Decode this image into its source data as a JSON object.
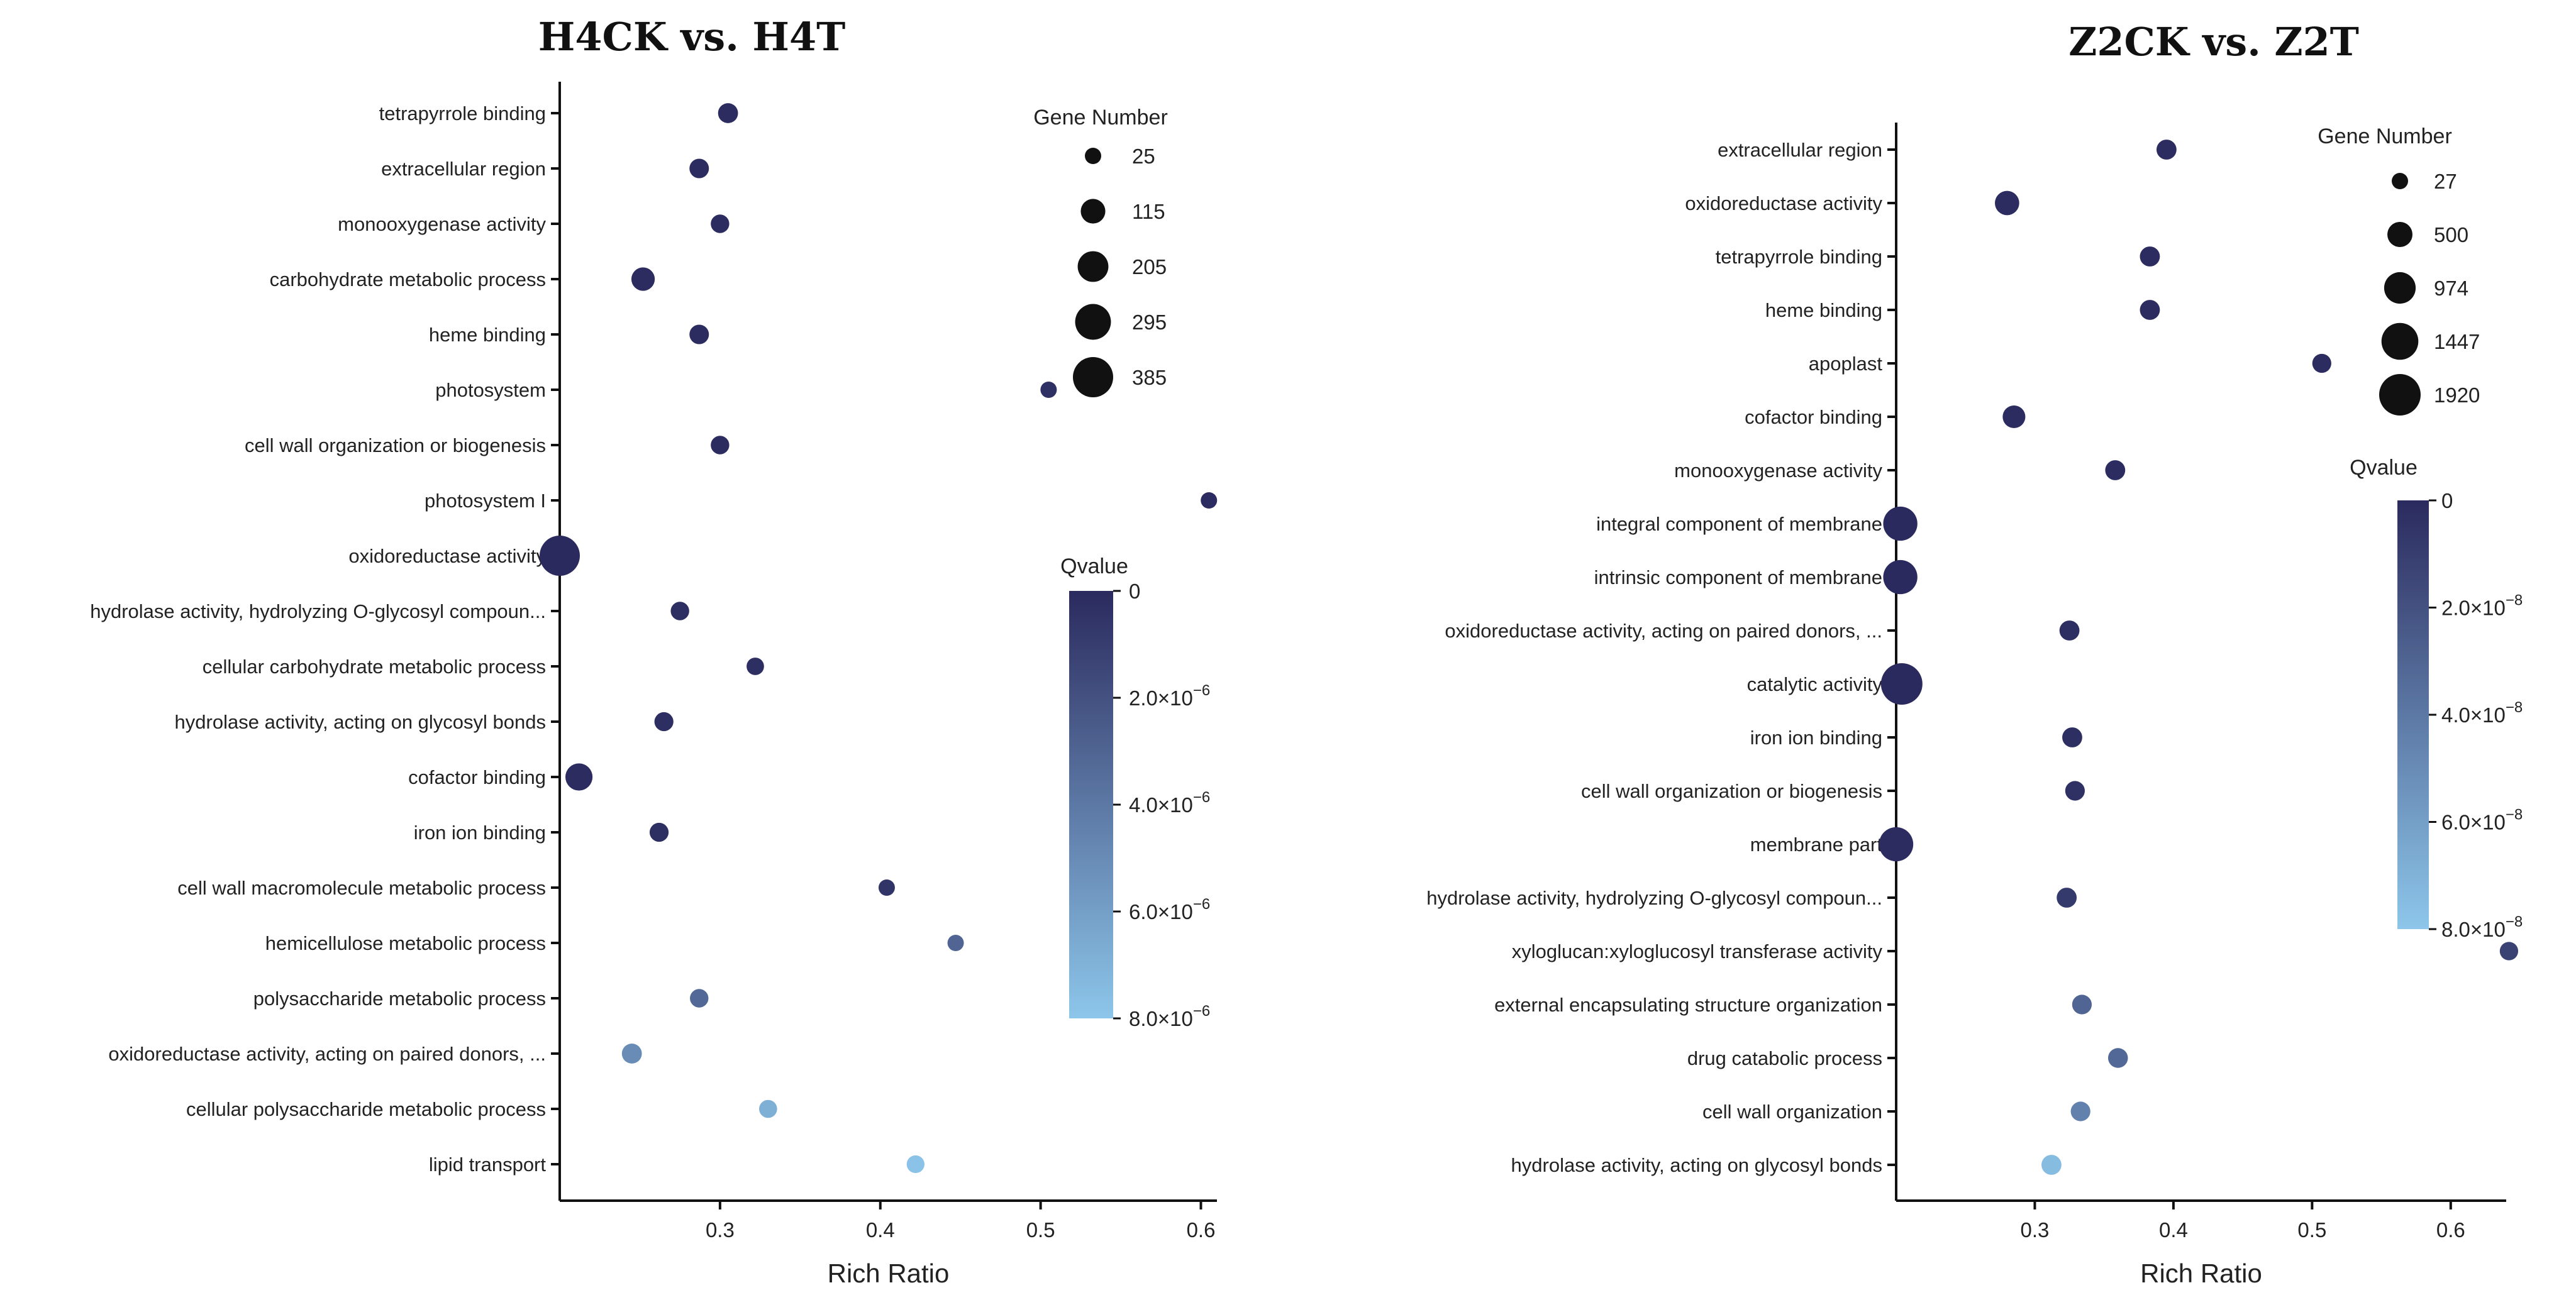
{
  "chart_data": [
    {
      "type": "scatter",
      "title": "H4CK vs. H4T",
      "xlabel": "Rich Ratio",
      "xlim": [
        0.2,
        0.61
      ],
      "xticks": [
        0.3,
        0.4,
        0.5,
        0.6
      ],
      "xtick_labels": [
        "0.3",
        "0.4",
        "0.5",
        "0.6"
      ],
      "size_legend": {
        "title": "Gene Number",
        "values": [
          25,
          115,
          205,
          295,
          385
        ]
      },
      "color_legend": {
        "title": "Qvalue",
        "min": 0,
        "max": 8e-06,
        "color_low": "#2b2a5e",
        "color_high": "#8dc6ea",
        "ticks": [
          {
            "value": 0,
            "label": "0"
          },
          {
            "value": 2e-06,
            "label": "2.0×10",
            "exp": "−6"
          },
          {
            "value": 4e-06,
            "label": "4.0×10",
            "exp": "−6"
          },
          {
            "value": 6e-06,
            "label": "6.0×10",
            "exp": "−6"
          },
          {
            "value": 8e-06,
            "label": "8.0×10",
            "exp": "−6"
          }
        ]
      },
      "points": [
        {
          "term": "tetrapyrrole binding",
          "rich_ratio": 0.305,
          "gene_number": 60,
          "qvalue": 1e-07
        },
        {
          "term": "extracellular region",
          "rich_ratio": 0.287,
          "gene_number": 55,
          "qvalue": 1e-07
        },
        {
          "term": "monooxygenase activity",
          "rich_ratio": 0.3,
          "gene_number": 45,
          "qvalue": 1e-07
        },
        {
          "term": "carbohydrate metabolic process",
          "rich_ratio": 0.252,
          "gene_number": 100,
          "qvalue": 1e-07
        },
        {
          "term": "heme binding",
          "rich_ratio": 0.287,
          "gene_number": 55,
          "qvalue": 1e-07
        },
        {
          "term": "photosystem",
          "rich_ratio": 0.505,
          "gene_number": 25,
          "qvalue": 3e-07
        },
        {
          "term": "cell wall organization or biogenesis",
          "rich_ratio": 0.3,
          "gene_number": 45,
          "qvalue": 1e-07
        },
        {
          "term": "photosystem I",
          "rich_ratio": 0.605,
          "gene_number": 25,
          "qvalue": 1e-07
        },
        {
          "term": "oxidoreductase activity",
          "rich_ratio": 0.2,
          "gene_number": 385,
          "qvalue": 0.0
        },
        {
          "term": "hydrolase activity, hydrolyzing O-glycosyl compoun...",
          "rich_ratio": 0.275,
          "gene_number": 45,
          "qvalue": 2e-07
        },
        {
          "term": "cellular carbohydrate metabolic process",
          "rich_ratio": 0.322,
          "gene_number": 35,
          "qvalue": 2e-07
        },
        {
          "term": "hydrolase activity, acting on glycosyl bonds",
          "rich_ratio": 0.265,
          "gene_number": 50,
          "qvalue": 2e-07
        },
        {
          "term": "cofactor binding",
          "rich_ratio": 0.212,
          "gene_number": 150,
          "qvalue": 1e-07
        },
        {
          "term": "iron ion binding",
          "rich_ratio": 0.262,
          "gene_number": 50,
          "qvalue": 2e-07
        },
        {
          "term": "cell wall macromolecule metabolic process",
          "rich_ratio": 0.404,
          "gene_number": 25,
          "qvalue": 5e-07
        },
        {
          "term": "hemicellulose metabolic process",
          "rich_ratio": 0.447,
          "gene_number": 25,
          "qvalue": 3e-06
        },
        {
          "term": "polysaccharide metabolic process",
          "rich_ratio": 0.287,
          "gene_number": 45,
          "qvalue": 3.2e-06
        },
        {
          "term": "oxidoreductase activity, acting on paired donors, ...",
          "rich_ratio": 0.245,
          "gene_number": 60,
          "qvalue": 5e-06
        },
        {
          "term": "cellular polysaccharide metabolic process",
          "rich_ratio": 0.33,
          "gene_number": 40,
          "qvalue": 6.8e-06
        },
        {
          "term": "lipid transport",
          "rich_ratio": 0.422,
          "gene_number": 38,
          "qvalue": 7.8e-06
        }
      ]
    },
    {
      "type": "scatter",
      "title": "Z2CK vs. Z2T",
      "xlabel": "Rich Ratio",
      "xlim": [
        0.2,
        0.64
      ],
      "xticks": [
        0.3,
        0.4,
        0.5,
        0.6
      ],
      "xtick_labels": [
        "0.3",
        "0.4",
        "0.5",
        "0.6"
      ],
      "size_legend": {
        "title": "Gene Number",
        "values": [
          27,
          500,
          974,
          1447,
          1920
        ]
      },
      "color_legend": {
        "title": "Qvalue",
        "min": 0,
        "max": 8e-08,
        "color_low": "#2b2a5e",
        "color_high": "#8dc6ea",
        "ticks": [
          {
            "value": 0,
            "label": "0"
          },
          {
            "value": 2e-08,
            "label": "2.0×10",
            "exp": "−8"
          },
          {
            "value": 4e-08,
            "label": "4.0×10",
            "exp": "−8"
          },
          {
            "value": 6e-08,
            "label": "6.0×10",
            "exp": "−8"
          },
          {
            "value": 8e-08,
            "label": "8.0×10",
            "exp": "−8"
          }
        ]
      },
      "points": [
        {
          "term": "extracellular region",
          "rich_ratio": 0.395,
          "gene_number": 200,
          "qvalue": 1e-09
        },
        {
          "term": "oxidoreductase activity",
          "rich_ratio": 0.28,
          "gene_number": 450,
          "qvalue": 1e-09
        },
        {
          "term": "tetrapyrrole binding",
          "rich_ratio": 0.383,
          "gene_number": 200,
          "qvalue": 1e-09
        },
        {
          "term": "heme binding",
          "rich_ratio": 0.383,
          "gene_number": 200,
          "qvalue": 1e-09
        },
        {
          "term": "apoplast",
          "rich_ratio": 0.507,
          "gene_number": 150,
          "qvalue": 1e-09
        },
        {
          "term": "cofactor binding",
          "rich_ratio": 0.285,
          "gene_number": 350,
          "qvalue": 1e-09
        },
        {
          "term": "monooxygenase activity",
          "rich_ratio": 0.358,
          "gene_number": 200,
          "qvalue": 1e-09
        },
        {
          "term": "integral component of membrane",
          "rich_ratio": 0.203,
          "gene_number": 1200,
          "qvalue": 0.0
        },
        {
          "term": "intrinsic component of membrane",
          "rich_ratio": 0.203,
          "gene_number": 1200,
          "qvalue": 0.0
        },
        {
          "term": "oxidoreductase activity, acting on paired donors, ...",
          "rich_ratio": 0.325,
          "gene_number": 200,
          "qvalue": 2e-09
        },
        {
          "term": "catalytic activity",
          "rich_ratio": 0.204,
          "gene_number": 1920,
          "qvalue": 0.0
        },
        {
          "term": "iron ion binding",
          "rich_ratio": 0.327,
          "gene_number": 200,
          "qvalue": 2e-09
        },
        {
          "term": "cell wall organization or biogenesis",
          "rich_ratio": 0.329,
          "gene_number": 180,
          "qvalue": 3e-09
        },
        {
          "term": "membrane part",
          "rich_ratio": 0.2,
          "gene_number": 1200,
          "qvalue": 1e-09
        },
        {
          "term": "hydrolase activity, hydrolyzing O-glycosyl compoun...",
          "rich_ratio": 0.323,
          "gene_number": 200,
          "qvalue": 8e-09
        },
        {
          "term": "xyloglucan:xyloglucosyl transferase activity",
          "rich_ratio": 0.642,
          "gene_number": 120,
          "qvalue": 1.2e-08
        },
        {
          "term": "external encapsulating structure organization",
          "rich_ratio": 0.334,
          "gene_number": 180,
          "qvalue": 3e-08
        },
        {
          "term": "drug catabolic process",
          "rich_ratio": 0.36,
          "gene_number": 190,
          "qvalue": 3.2e-08
        },
        {
          "term": "cell wall organization",
          "rich_ratio": 0.333,
          "gene_number": 180,
          "qvalue": 4.5e-08
        },
        {
          "term": "hydrolase activity, acting on glycosyl bonds",
          "rich_ratio": 0.312,
          "gene_number": 200,
          "qvalue": 7.5e-08
        }
      ]
    }
  ]
}
